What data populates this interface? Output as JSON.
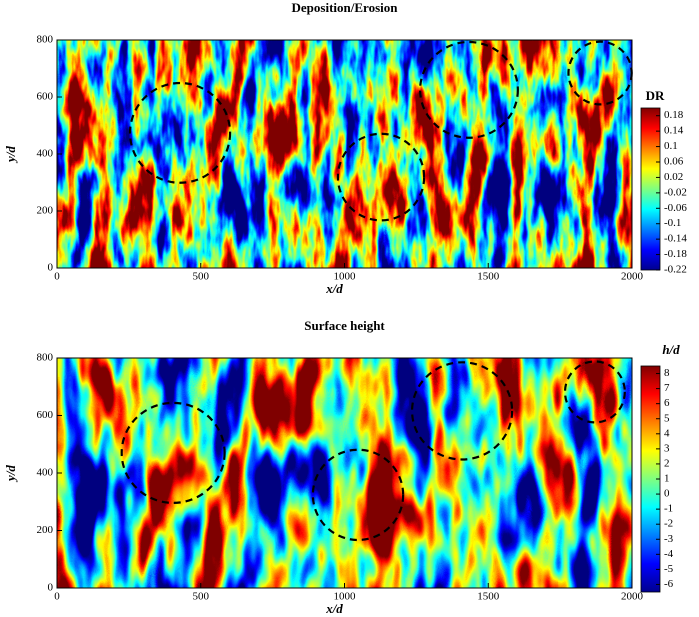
{
  "chart_data": [
    {
      "type": "contour",
      "title": "Deposition/Erosion",
      "x_label": "x/d",
      "y_label": "y/d",
      "colorbar_label": "DR",
      "xlim": [
        0,
        2000
      ],
      "ylim": [
        0,
        800
      ],
      "xticks": [
        0,
        500,
        1000,
        1500,
        2000
      ],
      "yticks": [
        0,
        200,
        400,
        600,
        800
      ],
      "colormap": "jet",
      "clim": [
        -0.22,
        0.2
      ],
      "colorbar_ticks": [
        0.18,
        0.14,
        0.1,
        0.06,
        0.02,
        -0.02,
        -0.06,
        -0.1,
        -0.14,
        -0.18,
        -0.22
      ],
      "annotations": [
        {
          "cx": 428,
          "cy": 474,
          "rx": 174,
          "ry": 175
        },
        {
          "cx": 1127,
          "cy": 319,
          "rx": 150,
          "ry": 152
        },
        {
          "cx": 1433,
          "cy": 625,
          "rx": 170,
          "ry": 168
        },
        {
          "cx": 1889,
          "cy": 684,
          "rx": 110,
          "ry": 110
        }
      ]
    },
    {
      "type": "contour",
      "title": "Surface height",
      "x_label": "x/d",
      "y_label": "y/d",
      "colorbar_label": "h/d",
      "xlim": [
        0,
        2000
      ],
      "ylim": [
        0,
        800
      ],
      "xticks": [
        0,
        500,
        1000,
        1500,
        2000
      ],
      "yticks": [
        0,
        200,
        400,
        600,
        800
      ],
      "colormap": "jet",
      "clim": [
        -6.5,
        8.5
      ],
      "colorbar_ticks": [
        8,
        7,
        6,
        5,
        4,
        3,
        2,
        1,
        0,
        -1,
        -2,
        -3,
        -4,
        -5,
        -6
      ],
      "annotations": [
        {
          "cx": 404,
          "cy": 470,
          "rx": 179,
          "ry": 174
        },
        {
          "cx": 1047,
          "cy": 324,
          "rx": 157,
          "ry": 157
        },
        {
          "cx": 1409,
          "cy": 616,
          "rx": 174,
          "ry": 169
        },
        {
          "cx": 1871,
          "cy": 682,
          "rx": 104,
          "ry": 106
        }
      ]
    }
  ]
}
